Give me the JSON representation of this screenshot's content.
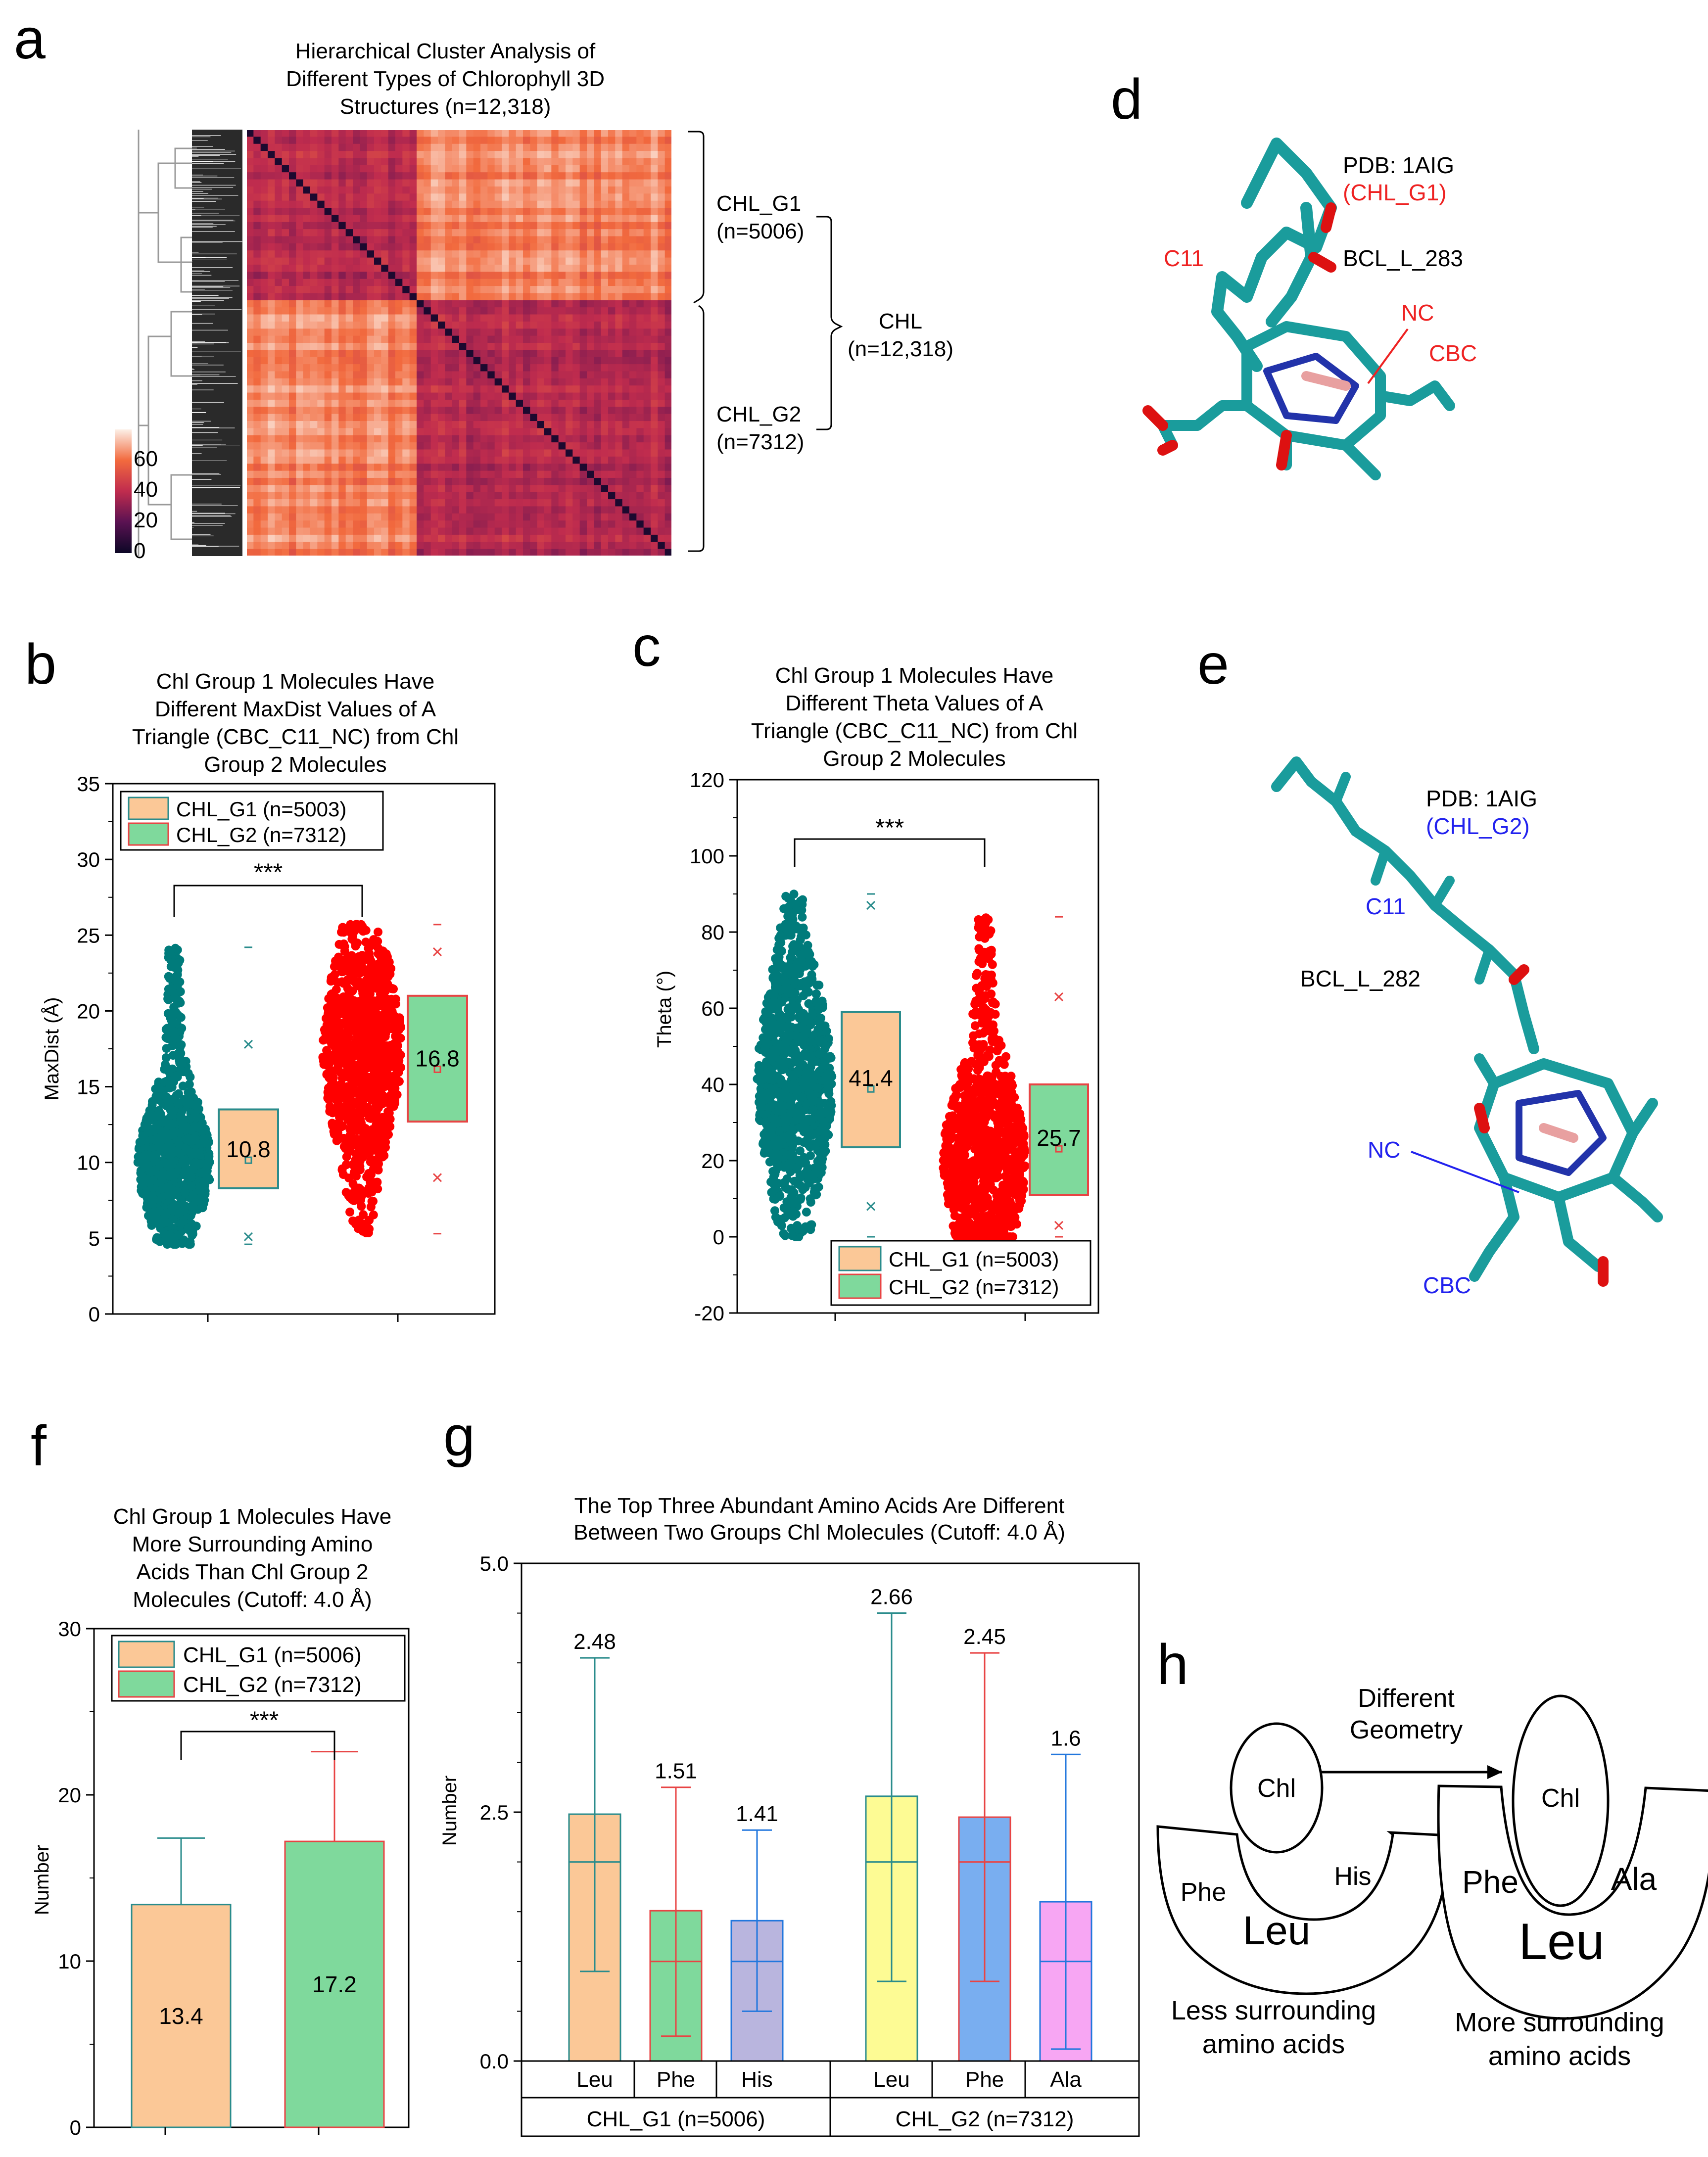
{
  "panel_letters": {
    "a": "a",
    "b": "b",
    "c": "c",
    "d": "d",
    "e": "e",
    "f": "f",
    "g": "g",
    "h": "h"
  },
  "colors": {
    "teal": "#007b7b",
    "red": "#ff0000",
    "orange_fill": "#fbc897",
    "green_fill": "#7fd99c",
    "yellow_fill": "#fdfb94",
    "blue_fill": "#79aef0",
    "purple_fill": "#b9b5de",
    "pink_fill": "#f7a6f3",
    "box_teal_border": "#2a8c8c",
    "box_red_border": "#e84444",
    "blue_label": "#2222ee",
    "red_label": "#ee2222"
  },
  "heatmap": {
    "title_lines": [
      "Hierarchical Cluster Analysis of",
      "Different Types of Chlorophyll 3D",
      "Structures (n=12,318)"
    ],
    "scale_labels": [
      "60",
      "40",
      "20",
      "0"
    ],
    "cluster_labels": {
      "g1_name": "CHL_G1",
      "g1_n": "(n=5006)",
      "g2_name": "CHL_G2",
      "g2_n": "(n=7312)",
      "all_name": "CHL",
      "all_n": "(n=12,318)"
    }
  },
  "structures": {
    "d": {
      "pdb": "PDB: 1AIG",
      "group": "(CHL_G1)",
      "residue": "BCL_L_283",
      "c11": "C11",
      "nc": "NC",
      "cbc": "CBC"
    },
    "e": {
      "pdb": "PDB: 1AIG",
      "group": "(CHL_G2)",
      "residue": "BCL_L_282",
      "c11": "C11",
      "nc": "NC",
      "cbc": "CBC"
    }
  },
  "diagram_h": {
    "arrow_label_lines": [
      "Different",
      "Geometry"
    ],
    "left": {
      "chl": "Chl",
      "aa1": "Phe",
      "aa2": "His",
      "center": "Leu",
      "caption_lines": [
        "Less surrounding",
        "amino acids"
      ]
    },
    "right": {
      "chl": "Chl",
      "aa1": "Phe",
      "aa2": "Ala",
      "center": "Leu",
      "caption_lines": [
        "More surrounding",
        "amino acids"
      ]
    }
  },
  "chart_data": [
    {
      "id": "a",
      "type": "heatmap",
      "title": "Hierarchical Cluster Analysis of Different Types of Chlorophyll 3D Structures (n=12,318)",
      "colorbar_ticks": [
        0,
        20,
        40,
        60
      ],
      "clusters": [
        {
          "name": "CHL_G1",
          "n": 5006
        },
        {
          "name": "CHL_G2",
          "n": 7312
        }
      ],
      "total": {
        "name": "CHL",
        "n": 12318
      }
    },
    {
      "id": "b",
      "type": "scatter",
      "title": "Chl Group 1 Molecules Have Different MaxDist Values of A Triangle (CBC_C11_NC) from Chl Group 2 Molecules",
      "title_lines": [
        "Chl Group 1 Molecules Have",
        "Different MaxDist Values of A",
        "Triangle (CBC_C11_NC) from Chl",
        "Group 2 Molecules"
      ],
      "ylabel": "MaxDist (Å)",
      "ylim": [
        0,
        35
      ],
      "yticks": [
        0,
        5,
        10,
        15,
        20,
        25,
        30,
        35
      ],
      "legend": [
        "CHL_G1 (n=5003)",
        "CHL_G2 (n=7312)"
      ],
      "significance": "***",
      "series": [
        {
          "name": "CHL_G1 (n=5003)",
          "mean": 10.8,
          "mean_label": "10.8",
          "q1": 8.3,
          "q3": 13.5,
          "min": 4.6,
          "max": 24.2,
          "p1": 5.1,
          "p99": 17.8,
          "mode": 10.0
        },
        {
          "name": "CHL_G2 (n=7312)",
          "mean": 16.8,
          "mean_label": "16.8",
          "q1": 12.7,
          "q3": 21.0,
          "min": 5.3,
          "max": 25.7,
          "p1": 9.0,
          "p99": 23.9,
          "mode": 17.5
        }
      ]
    },
    {
      "id": "c",
      "type": "scatter",
      "title": "Chl Group 1 Molecules Have Different Theta Values of A Triangle (CBC_C11_NC) from Chl Group 2 Molecules",
      "title_lines": [
        "Chl Group 1 Molecules Have",
        "Different Theta Values of A",
        "Triangle (CBC_C11_NC) from Chl",
        "Group 2 Molecules"
      ],
      "ylabel": "Theta (°)",
      "ylim": [
        -20,
        120
      ],
      "yticks": [
        -20,
        0,
        20,
        40,
        60,
        80,
        100,
        120
      ],
      "legend": [
        "CHL_G1 (n=5003)",
        "CHL_G2 (n=7312)"
      ],
      "significance": "***",
      "series": [
        {
          "name": "CHL_G1 (n=5003)",
          "mean": 41.4,
          "mean_label": "41.4",
          "q1": 23.5,
          "q3": 59.0,
          "min": 0.0,
          "max": 90.0,
          "p1": 8.0,
          "p99": 87.0,
          "mode": 40.0
        },
        {
          "name": "CHL_G2 (n=7312)",
          "mean": 25.7,
          "mean_label": "25.7",
          "q1": 11.0,
          "q3": 40.0,
          "min": 0.0,
          "max": 84.0,
          "p1": 3.0,
          "p99": 63.0,
          "mode": 20.0
        }
      ]
    },
    {
      "id": "f",
      "type": "bar",
      "title": "Chl Group 1 Molecules Have More Surrounding Amino Acids Than Chl Group 2 Molecules (Cutoff: 4.0 Å)",
      "title_lines": [
        "Chl Group 1 Molecules Have",
        "More Surrounding Amino",
        "Acids Than Chl Group 2",
        "Molecules (Cutoff: 4.0 Å)"
      ],
      "ylabel": "Number",
      "ylim": [
        0,
        30
      ],
      "yticks": [
        0,
        10,
        20,
        30
      ],
      "legend": [
        "CHL_G1 (n=5006)",
        "CHL_G2 (n=7312)"
      ],
      "significance": "***",
      "categories": [
        "CHL_G1 (n=5006)",
        "CHL_G2 (n=7312)"
      ],
      "values": [
        13.4,
        17.2
      ],
      "value_labels": [
        "13.4",
        "17.2"
      ],
      "errors": [
        4.0,
        5.4
      ]
    },
    {
      "id": "g",
      "type": "bar",
      "title": "The Top Three Abundant Amino Acids Are Different Between Two Groups Chl Molecules (Cutoff: 4.0 Å)",
      "title_lines": [
        "The Top Three Abundant Amino Acids Are Different",
        "Between Two Groups Chl Molecules (Cutoff: 4.0 Å)"
      ],
      "ylabel": "Number",
      "ylim": [
        0,
        5
      ],
      "yticks": [
        0.0,
        2.5,
        5.0
      ],
      "ytick_labels": [
        "0.0",
        "2.5",
        "5.0"
      ],
      "groups": [
        "CHL_G1 (n=5006)",
        "CHL_G2 (n=7312)"
      ],
      "categories": [
        "Leu",
        "Phe",
        "His",
        "Leu",
        "Phe",
        "Ala"
      ],
      "values": [
        2.48,
        1.51,
        1.41,
        2.66,
        2.45,
        1.6
      ],
      "value_labels": [
        "2.48",
        "1.51",
        "1.41",
        "2.66",
        "2.45",
        "1.6"
      ],
      "medians": [
        2.0,
        1.0,
        1.0,
        2.0,
        2.0,
        1.0
      ],
      "whisker_high": [
        4.05,
        2.75,
        2.32,
        4.5,
        4.1,
        3.08
      ],
      "whisker_low": [
        0.9,
        0.25,
        0.5,
        0.8,
        0.8,
        0.12
      ]
    }
  ]
}
